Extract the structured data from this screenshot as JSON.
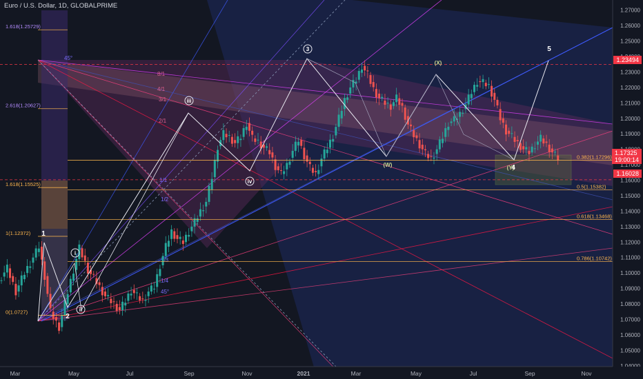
{
  "header": {
    "symbol_line": "Euro / U.S. Dollar, 1D, GLOBALPRIME"
  },
  "price_tags": {
    "current": "1.17325",
    "countdown": "19:00:14",
    "level_high": "1.23494",
    "level_low": "1.16028"
  },
  "colors": {
    "background": "#131722",
    "up_candle": "#26a69a",
    "down_candle": "#ef5350",
    "fib_line": "#ffb74d",
    "wave_line": "#e8e8f0",
    "tag_red": "#f23645",
    "tag_blue": "#2962ff"
  },
  "chart_data": {
    "type": "candlestick",
    "title": "Euro / U.S. Dollar, 1D, GLOBALPRIME",
    "x_ticks": [
      "Mar",
      "May",
      "Jul",
      "Sep",
      "Nov",
      "2021",
      "Mar",
      "May",
      "Jul",
      "Sep",
      "Nov"
    ],
    "y_ticks": [
      "1.27000",
      "1.26000",
      "1.25000",
      "1.24000",
      "1.23000",
      "1.22000",
      "1.21000",
      "1.20000",
      "1.19000",
      "1.18000",
      "1.17000",
      "1.16000",
      "1.15000",
      "1.14000",
      "1.13000",
      "1.12000",
      "1.11000",
      "1.10000",
      "1.09000",
      "1.08000",
      "1.07000",
      "1.06000",
      "1.05000",
      "1.04000"
    ],
    "ylim": [
      1.035,
      1.273
    ],
    "price_path": [
      [
        0,
        1.095
      ],
      [
        3,
        1.103
      ],
      [
        6,
        1.088
      ],
      [
        9,
        1.1
      ],
      [
        12,
        1.11
      ],
      [
        14,
        1.117
      ],
      [
        16,
        1.098
      ],
      [
        18,
        1.075
      ],
      [
        20,
        1.068
      ],
      [
        21,
        1.065
      ],
      [
        23,
        1.08
      ],
      [
        25,
        1.095
      ],
      [
        28,
        1.116
      ],
      [
        31,
        1.102
      ],
      [
        34,
        1.094
      ],
      [
        37,
        1.085
      ],
      [
        40,
        1.08
      ],
      [
        42,
        1.076
      ],
      [
        44,
        1.082
      ],
      [
        46,
        1.089
      ],
      [
        48,
        1.085
      ],
      [
        50,
        1.082
      ],
      [
        52,
        1.088
      ],
      [
        54,
        1.091
      ],
      [
        56,
        1.105
      ],
      [
        58,
        1.117
      ],
      [
        60,
        1.127
      ],
      [
        62,
        1.122
      ],
      [
        64,
        1.12
      ],
      [
        66,
        1.127
      ],
      [
        68,
        1.133
      ],
      [
        70,
        1.14
      ],
      [
        72,
        1.146
      ],
      [
        74,
        1.162
      ],
      [
        76,
        1.182
      ],
      [
        78,
        1.19
      ],
      [
        80,
        1.188
      ],
      [
        82,
        1.184
      ],
      [
        84,
        1.188
      ],
      [
        86,
        1.197
      ],
      [
        88,
        1.187
      ],
      [
        90,
        1.185
      ],
      [
        92,
        1.181
      ],
      [
        94,
        1.178
      ],
      [
        96,
        1.169
      ],
      [
        98,
        1.164
      ],
      [
        100,
        1.17
      ],
      [
        102,
        1.179
      ],
      [
        104,
        1.186
      ],
      [
        106,
        1.176
      ],
      [
        108,
        1.168
      ],
      [
        110,
        1.164
      ],
      [
        112,
        1.174
      ],
      [
        114,
        1.181
      ],
      [
        116,
        1.189
      ],
      [
        118,
        1.2
      ],
      [
        120,
        1.212
      ],
      [
        122,
        1.22
      ],
      [
        124,
        1.225
      ],
      [
        126,
        1.234
      ],
      [
        128,
        1.228
      ],
      [
        130,
        1.219
      ],
      [
        132,
        1.213
      ],
      [
        134,
        1.21
      ],
      [
        136,
        1.208
      ],
      [
        138,
        1.213
      ],
      [
        140,
        1.207
      ],
      [
        142,
        1.196
      ],
      [
        144,
        1.189
      ],
      [
        146,
        1.183
      ],
      [
        148,
        1.177
      ],
      [
        150,
        1.174
      ],
      [
        152,
        1.18
      ],
      [
        154,
        1.188
      ],
      [
        156,
        1.197
      ],
      [
        158,
        1.199
      ],
      [
        160,
        1.203
      ],
      [
        162,
        1.209
      ],
      [
        164,
        1.217
      ],
      [
        166,
        1.224
      ],
      [
        168,
        1.223
      ],
      [
        170,
        1.221
      ],
      [
        172,
        1.212
      ],
      [
        174,
        1.2
      ],
      [
        176,
        1.192
      ],
      [
        178,
        1.188
      ],
      [
        180,
        1.184
      ],
      [
        182,
        1.18
      ],
      [
        184,
        1.178
      ],
      [
        186,
        1.183
      ],
      [
        188,
        1.187
      ],
      [
        190,
        1.183
      ],
      [
        192,
        1.178
      ],
      [
        194,
        1.174
      ]
    ],
    "fib_levels": [
      {
        "label": "1.618(1.25729)",
        "value": 1.25729
      },
      {
        "label": "2.618(1.20627)",
        "value": 1.20627
      },
      {
        "label": "1.618(1.15525)",
        "value": 1.15525
      },
      {
        "label": "1(1.12372)",
        "value": 1.12372
      },
      {
        "label": "0(1.0727)",
        "value": 1.0727
      },
      {
        "label": "0.382(1.17296)",
        "value": 1.17296
      },
      {
        "label": "0.5(1.15382)",
        "value": 1.15382
      },
      {
        "label": "0.618(1.13468)",
        "value": 1.13468
      },
      {
        "label": "0.786(1.10742)",
        "value": 1.10742
      }
    ],
    "wave_labels": [
      "1",
      "2",
      "i",
      "ii",
      "iii",
      "iv",
      "3",
      "(W)",
      "(X)",
      "(Y)",
      "4",
      "5"
    ],
    "gann_labels": [
      "8/1",
      "4/1",
      "3/1",
      "2/1",
      "1/1",
      "1/2",
      "1/3",
      "1/4",
      "45°",
      "45°"
    ]
  }
}
